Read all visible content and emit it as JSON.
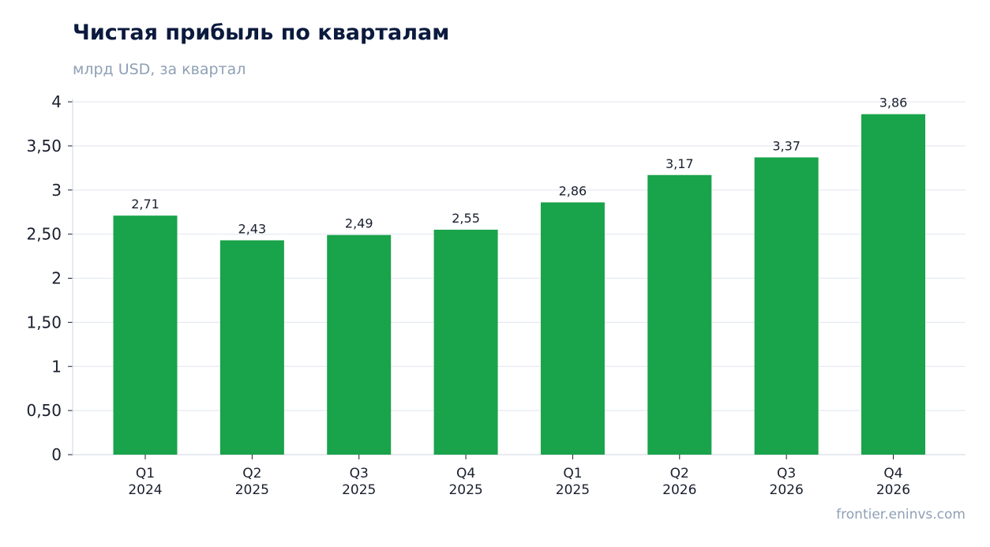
{
  "title": "Чистая прибыль по кварталам",
  "subtitle": "млрд USD, за квартал",
  "source": "frontier.eninvs.com",
  "colors": {
    "bar": "#19a34a",
    "grid": "#e6eaf1",
    "axis": "#cfd6e0",
    "title": "#0b1a3d",
    "muted": "#8fa0b5"
  },
  "chart_data": {
    "type": "bar",
    "categories": [
      [
        "Q1",
        "2024"
      ],
      [
        "Q2",
        "2025"
      ],
      [
        "Q3",
        "2025"
      ],
      [
        "Q4",
        "2025"
      ],
      [
        "Q1",
        "2025"
      ],
      [
        "Q2",
        "2026"
      ],
      [
        "Q3",
        "2026"
      ],
      [
        "Q4",
        "2026"
      ]
    ],
    "values": [
      2.71,
      2.43,
      2.49,
      2.55,
      2.86,
      3.17,
      3.37,
      3.86
    ],
    "value_labels": [
      "2,71",
      "2,43",
      "2,49",
      "2,55",
      "2,86",
      "3,17",
      "3,37",
      "3,86"
    ],
    "ylim": [
      0,
      4
    ],
    "yticks": [
      0,
      0.5,
      1,
      1.5,
      2,
      2.5,
      3,
      3.5,
      4
    ],
    "ytick_labels": [
      "0",
      "0,50",
      "1",
      "1,50",
      "2",
      "2,50",
      "3",
      "3,50",
      "4"
    ],
    "grid": true,
    "legend": "none"
  }
}
